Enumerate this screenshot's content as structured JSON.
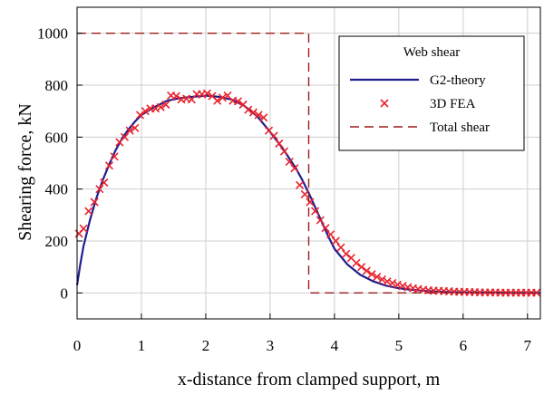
{
  "chart_data": {
    "type": "line",
    "xlabel": "x-distance from clamped support, m",
    "ylabel": "Shearing force, kN",
    "xlim": [
      0,
      7.2
    ],
    "ylim": [
      -100,
      1100
    ],
    "x_ticks": [
      0,
      1,
      2,
      3,
      4,
      5,
      6,
      7
    ],
    "y_ticks": [
      0,
      200,
      400,
      600,
      800,
      1000
    ],
    "grid": true,
    "legend": {
      "title": "Web shear",
      "position": "top-right",
      "entries": [
        {
          "label": "G2-theory",
          "style": "solid-line",
          "color": "#1f1f8f"
        },
        {
          "label": "3D FEA",
          "style": "x-marker",
          "color": "#e8232e"
        },
        {
          "label": "Total shear",
          "style": "dashed-line",
          "color": "#9b1c1c"
        }
      ]
    },
    "series": [
      {
        "name": "G2-theory",
        "style": "solid-line",
        "color": "#1f1f8f",
        "x": [
          0.0,
          0.05,
          0.1,
          0.2,
          0.3,
          0.4,
          0.5,
          0.6,
          0.7,
          0.8,
          0.9,
          1.0,
          1.2,
          1.4,
          1.6,
          1.8,
          2.0,
          2.2,
          2.4,
          2.6,
          2.8,
          3.0,
          3.2,
          3.4,
          3.5,
          3.6,
          3.7,
          3.8,
          3.9,
          4.0,
          4.2,
          4.4,
          4.6,
          4.8,
          5.0,
          5.2,
          5.4,
          5.6,
          5.8,
          6.0,
          6.5,
          7.0,
          7.2
        ],
        "y": [
          30,
          110,
          180,
          280,
          365,
          435,
          495,
          550,
          595,
          630,
          660,
          685,
          715,
          740,
          750,
          755,
          760,
          755,
          745,
          720,
          680,
          620,
          555,
          480,
          435,
          385,
          330,
          275,
          220,
          170,
          110,
          70,
          45,
          28,
          18,
          12,
          8,
          5,
          3,
          2,
          1,
          0,
          0
        ]
      },
      {
        "name": "3D FEA",
        "style": "x-marker",
        "color": "#e8232e",
        "x": [
          0.03,
          0.1,
          0.18,
          0.27,
          0.35,
          0.42,
          0.5,
          0.58,
          0.66,
          0.74,
          0.82,
          0.9,
          0.98,
          1.06,
          1.14,
          1.22,
          1.3,
          1.38,
          1.46,
          1.54,
          1.62,
          1.7,
          1.78,
          1.86,
          1.94,
          2.02,
          2.1,
          2.18,
          2.26,
          2.34,
          2.42,
          2.5,
          2.58,
          2.66,
          2.74,
          2.82,
          2.9,
          2.98,
          3.06,
          3.14,
          3.22,
          3.3,
          3.38,
          3.46,
          3.54,
          3.62,
          3.7,
          3.78,
          3.86,
          3.94,
          4.02,
          4.1,
          4.18,
          4.26,
          4.34,
          4.42,
          4.5,
          4.58,
          4.66,
          4.74,
          4.82,
          4.9,
          4.98,
          5.06,
          5.14,
          5.22,
          5.3,
          5.38,
          5.46,
          5.54,
          5.62,
          5.7,
          5.78,
          5.86,
          5.94,
          6.02,
          6.1,
          6.18,
          6.26,
          6.34,
          6.42,
          6.5,
          6.58,
          6.66,
          6.74,
          6.82,
          6.9,
          6.98,
          7.06,
          7.14
        ],
        "y": [
          228,
          248,
          315,
          350,
          400,
          425,
          490,
          525,
          580,
          600,
          625,
          635,
          685,
          700,
          710,
          710,
          715,
          725,
          760,
          758,
          745,
          748,
          745,
          765,
          765,
          768,
          758,
          740,
          752,
          760,
          740,
          738,
          725,
          705,
          695,
          685,
          675,
          625,
          605,
          575,
          545,
          505,
          480,
          415,
          380,
          350,
          315,
          280,
          250,
          225,
          200,
          175,
          150,
          135,
          115,
          100,
          85,
          72,
          62,
          52,
          44,
          38,
          32,
          27,
          22,
          18,
          15,
          12,
          10,
          9,
          8,
          7,
          6,
          5,
          4,
          4,
          3,
          3,
          2,
          2,
          2,
          2,
          1,
          1,
          1,
          1,
          1,
          1,
          1,
          1
        ]
      },
      {
        "name": "Total shear",
        "style": "dashed-line",
        "color": "#9b1c1c",
        "x": [
          0,
          3.6,
          3.6,
          7.2
        ],
        "y": [
          1000,
          1000,
          0,
          0
        ]
      }
    ]
  }
}
